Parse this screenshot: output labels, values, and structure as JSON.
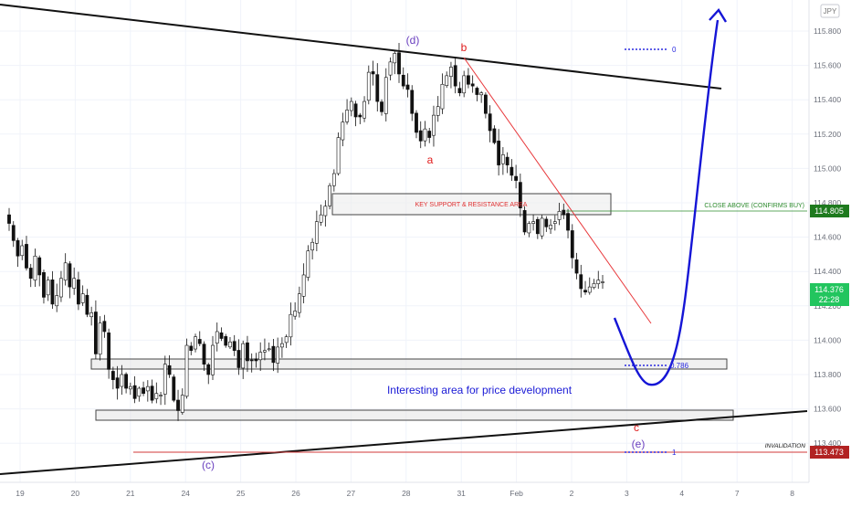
{
  "chart_data": {
    "type": "candlestick",
    "currency_badge": "JPY",
    "y_axis": {
      "ticks": [
        "115.800",
        "115.600",
        "115.400",
        "115.200",
        "115.000",
        "114.800",
        "114.600",
        "114.400",
        "114.200",
        "114.000",
        "113.800",
        "113.600",
        "113.400"
      ],
      "ylim": [
        113.35,
        115.95
      ]
    },
    "x_axis": {
      "ticks": [
        "19",
        "20",
        "21",
        "24",
        "25",
        "26",
        "27",
        "28",
        "31",
        "Feb",
        "2",
        "3",
        "4",
        "7",
        "8"
      ]
    },
    "price_labels": {
      "confirm_level": {
        "value": 114.805,
        "text": "114.805",
        "color": "#1e7a1e"
      },
      "current_price": {
        "value": 114.376,
        "text": "114.376",
        "countdown": "22:28",
        "color": "#22c55e"
      },
      "invalidation_level": {
        "value": 113.473,
        "text": "113.473",
        "color": "#b22222"
      }
    },
    "annotations": {
      "wave_d": "(d)",
      "wave_b": "b",
      "wave_a": "a",
      "wave_c_low": "(c)",
      "wave_c": "c",
      "wave_e": "(e)",
      "key_zone_label": "KEY SUPPORT & RESISTANCE AREA",
      "close_above_label": "CLOSE ABOVE (CONFIRMS BUY)",
      "interesting_area": "Interesting area for price development",
      "invalidation": "INVALIDATION",
      "fib_top": "0",
      "fib_mid": "0.786",
      "fib_bottom": "1"
    },
    "colors": {
      "candle_up": "#ffffff",
      "candle_down": "#111111",
      "projection": "#1515d6",
      "wave_red": "#e01b1b",
      "wave_purple": "#6a3fbf",
      "grid": "#f0f3fa"
    },
    "close_series": [
      114.68,
      114.58,
      114.49,
      114.55,
      114.42,
      114.36,
      114.49,
      114.38,
      114.25,
      114.35,
      114.21,
      114.26,
      114.36,
      114.45,
      114.31,
      114.36,
      114.21,
      114.27,
      114.15,
      114.16,
      113.92,
      114.1,
      114.05,
      113.83,
      113.77,
      113.72,
      113.8,
      113.72,
      113.73,
      113.66,
      113.72,
      113.69,
      113.73,
      113.65,
      113.69,
      113.68,
      113.86,
      113.8,
      113.65,
      113.59,
      113.68,
      113.97,
      113.94,
      114.02,
      113.98,
      113.86,
      113.8,
      113.97,
      114.05,
      114.01,
      113.97,
      113.99,
      113.94,
      113.84,
      113.98,
      113.88,
      113.88,
      113.88,
      113.93,
      113.94,
      113.95,
      113.87,
      113.96,
      113.98,
      114.02,
      114.15,
      114.17,
      114.27,
      114.38,
      114.52,
      114.57,
      114.69,
      114.73,
      114.78,
      114.9,
      114.97,
      115.18,
      115.27,
      115.34,
      115.39,
      115.3,
      115.3,
      115.39,
      115.56,
      115.55,
      115.39,
      115.33,
      115.53,
      115.62,
      115.67,
      115.55,
      115.48,
      115.46,
      115.32,
      115.21,
      115.16,
      115.23,
      115.18,
      115.31,
      115.36,
      115.49,
      115.54,
      115.59,
      115.48,
      115.44,
      115.54,
      115.49,
      115.48,
      115.43,
      115.44,
      115.32,
      115.22,
      115.15,
      115.02,
      115.08,
      115.02,
      114.96,
      114.93,
      114.77,
      114.63,
      114.68,
      114.69,
      114.62,
      114.71,
      114.66,
      114.67,
      114.69,
      114.75,
      114.73,
      114.64,
      114.48,
      114.39,
      114.3,
      114.28,
      114.31,
      114.33,
      114.35,
      114.34
    ]
  }
}
